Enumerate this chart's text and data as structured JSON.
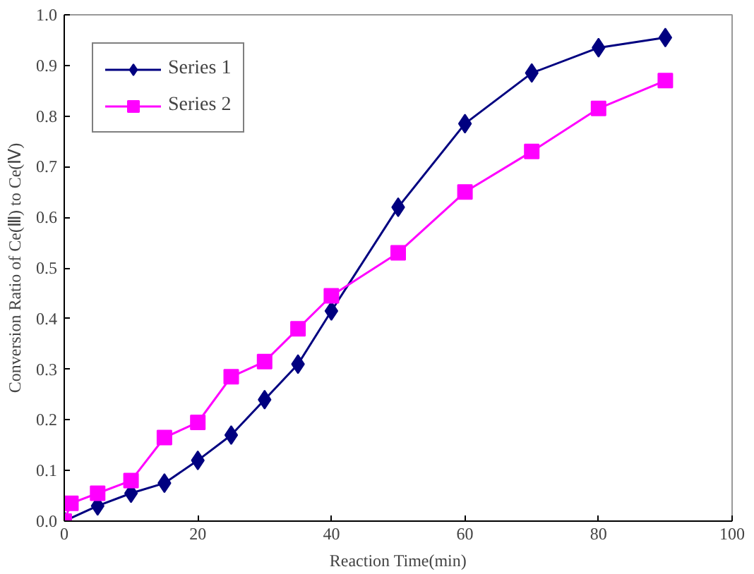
{
  "chart_data": {
    "type": "line",
    "xlabel": "Reaction Time(min)",
    "ylabel": "Conversion Ratio of Ce(Ⅲ) to Ce(Ⅳ)",
    "xlim": [
      0,
      100
    ],
    "xticks": [
      0,
      20,
      40,
      60,
      80,
      100
    ],
    "ylim": [
      0,
      1.0
    ],
    "yticks": [
      {
        "value": 0,
        "label": "0.0"
      },
      {
        "value": 0.1,
        "label": "0.1"
      },
      {
        "value": 0.2,
        "label": "0.2"
      },
      {
        "value": 0.3,
        "label": "0.3"
      },
      {
        "value": 0.4,
        "label": "0.4"
      },
      {
        "value": 0.5,
        "label": "0.5"
      },
      {
        "value": 0.6,
        "label": "0.6"
      },
      {
        "value": 0.7,
        "label": "0.7"
      },
      {
        "value": 0.8,
        "label": "0.8"
      },
      {
        "value": 0.9,
        "label": "0.9"
      },
      {
        "value": 1.0,
        "label": "1.0"
      }
    ],
    "grid": false,
    "legend": "top left",
    "series": [
      {
        "name": "Series 1",
        "color": "#000080",
        "marker": "diamond",
        "x": [
          0,
          5,
          10,
          15,
          20,
          25,
          30,
          35,
          40,
          50,
          60,
          70,
          80,
          90
        ],
        "values": [
          0,
          0.03,
          0.055,
          0.075,
          0.12,
          0.17,
          0.24,
          0.31,
          0.415,
          0.62,
          0.785,
          0.885,
          0.935,
          0.955
        ]
      },
      {
        "name": "Series 2",
        "color": "#ff00ff",
        "marker": "square",
        "x": [
          0,
          1,
          5,
          10,
          15,
          20,
          25,
          30,
          35,
          40,
          50,
          60,
          70,
          80,
          90
        ],
        "values": [
          0,
          0.035,
          0.055,
          0.08,
          0.165,
          0.195,
          0.285,
          0.315,
          0.38,
          0.445,
          0.53,
          0.65,
          0.73,
          0.815,
          0.87
        ]
      }
    ]
  }
}
